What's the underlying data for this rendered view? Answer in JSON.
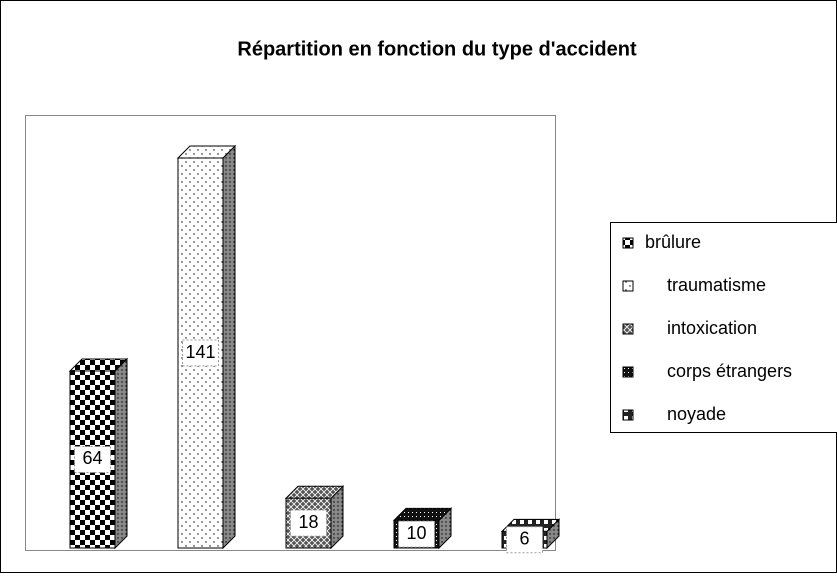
{
  "chart_data": {
    "type": "bar",
    "title": "Répartition en fonction du type d'accident",
    "categories": [
      null
    ],
    "series": [
      {
        "name": "brûlure",
        "values": [
          64
        ]
      },
      {
        "name": "traumatisme",
        "values": [
          141
        ]
      },
      {
        "name": "intoxication",
        "values": [
          18
        ]
      },
      {
        "name": "corps étrangers",
        "values": [
          10
        ]
      },
      {
        "name": "noyade",
        "values": [
          6
        ]
      }
    ]
  }
}
